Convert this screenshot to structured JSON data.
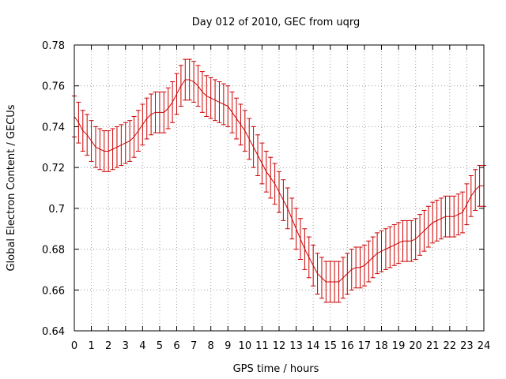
{
  "chart_data": {
    "type": "line",
    "title": "Day 012 of 2010, GEC from uqrg",
    "xlabel": "GPS time / hours",
    "ylabel": "Global Electron Content / GECUs",
    "xlim": [
      0,
      24
    ],
    "ylim": [
      0.64,
      0.78
    ],
    "xticks": [
      0,
      1,
      2,
      3,
      4,
      5,
      6,
      7,
      8,
      9,
      10,
      11,
      12,
      13,
      14,
      15,
      16,
      17,
      18,
      19,
      20,
      21,
      22,
      23,
      24
    ],
    "xtick_labels": [
      "0",
      "1",
      "2",
      "3",
      "4",
      "5",
      "6",
      "7",
      "8",
      "9",
      "10",
      "11",
      "12",
      "13",
      "14",
      "15",
      "16",
      "17",
      "18",
      "19",
      "20",
      "21",
      "22",
      "23",
      "24"
    ],
    "yticks": [
      0.64,
      0.66,
      0.68,
      0.7,
      0.72,
      0.74,
      0.76,
      0.78
    ],
    "ytick_labels": [
      "0.64",
      "0.66",
      "0.68",
      "0.7",
      "0.72",
      "0.74",
      "0.76",
      "0.78"
    ],
    "grid": true,
    "series_color": "#cc0000",
    "series": [
      {
        "x": [
          0,
          0.25,
          0.5,
          0.75,
          1,
          1.25,
          1.5,
          1.75,
          2,
          2.25,
          2.5,
          2.75,
          3,
          3.25,
          3.5,
          3.75,
          4,
          4.25,
          4.5,
          4.75,
          5,
          5.25,
          5.5,
          5.75,
          6,
          6.25,
          6.5,
          6.75,
          7,
          7.25,
          7.5,
          7.75,
          8,
          8.25,
          8.5,
          8.75,
          9,
          9.25,
          9.5,
          9.75,
          10,
          10.25,
          10.5,
          10.75,
          11,
          11.25,
          11.5,
          11.75,
          12,
          12.25,
          12.5,
          12.75,
          13,
          13.25,
          13.5,
          13.75,
          14,
          14.25,
          14.5,
          14.75,
          15,
          15.25,
          15.5,
          15.75,
          16,
          16.25,
          16.5,
          16.75,
          17,
          17.25,
          17.5,
          17.75,
          18,
          18.25,
          18.5,
          18.75,
          19,
          19.25,
          19.5,
          19.75,
          20,
          20.25,
          20.5,
          20.75,
          21,
          21.25,
          21.5,
          21.75,
          22,
          22.25,
          22.5,
          22.75,
          23,
          23.25,
          23.5,
          23.75,
          24
        ],
        "y": [
          0.745,
          0.742,
          0.738,
          0.736,
          0.733,
          0.73,
          0.729,
          0.728,
          0.728,
          0.729,
          0.73,
          0.731,
          0.732,
          0.733,
          0.735,
          0.738,
          0.741,
          0.744,
          0.746,
          0.747,
          0.747,
          0.747,
          0.749,
          0.752,
          0.756,
          0.76,
          0.763,
          0.763,
          0.762,
          0.76,
          0.757,
          0.755,
          0.754,
          0.753,
          0.752,
          0.751,
          0.75,
          0.747,
          0.744,
          0.741,
          0.738,
          0.734,
          0.73,
          0.726,
          0.722,
          0.718,
          0.715,
          0.712,
          0.708,
          0.704,
          0.7,
          0.695,
          0.69,
          0.685,
          0.68,
          0.676,
          0.672,
          0.668,
          0.666,
          0.664,
          0.664,
          0.664,
          0.664,
          0.666,
          0.668,
          0.67,
          0.671,
          0.671,
          0.672,
          0.674,
          0.676,
          0.678,
          0.679,
          0.68,
          0.681,
          0.682,
          0.683,
          0.684,
          0.684,
          0.684,
          0.685,
          0.687,
          0.689,
          0.691,
          0.693,
          0.694,
          0.695,
          0.696,
          0.696,
          0.696,
          0.697,
          0.698,
          0.702,
          0.706,
          0.709,
          0.711,
          0.711
        ],
        "yerr": 0.01
      }
    ]
  }
}
